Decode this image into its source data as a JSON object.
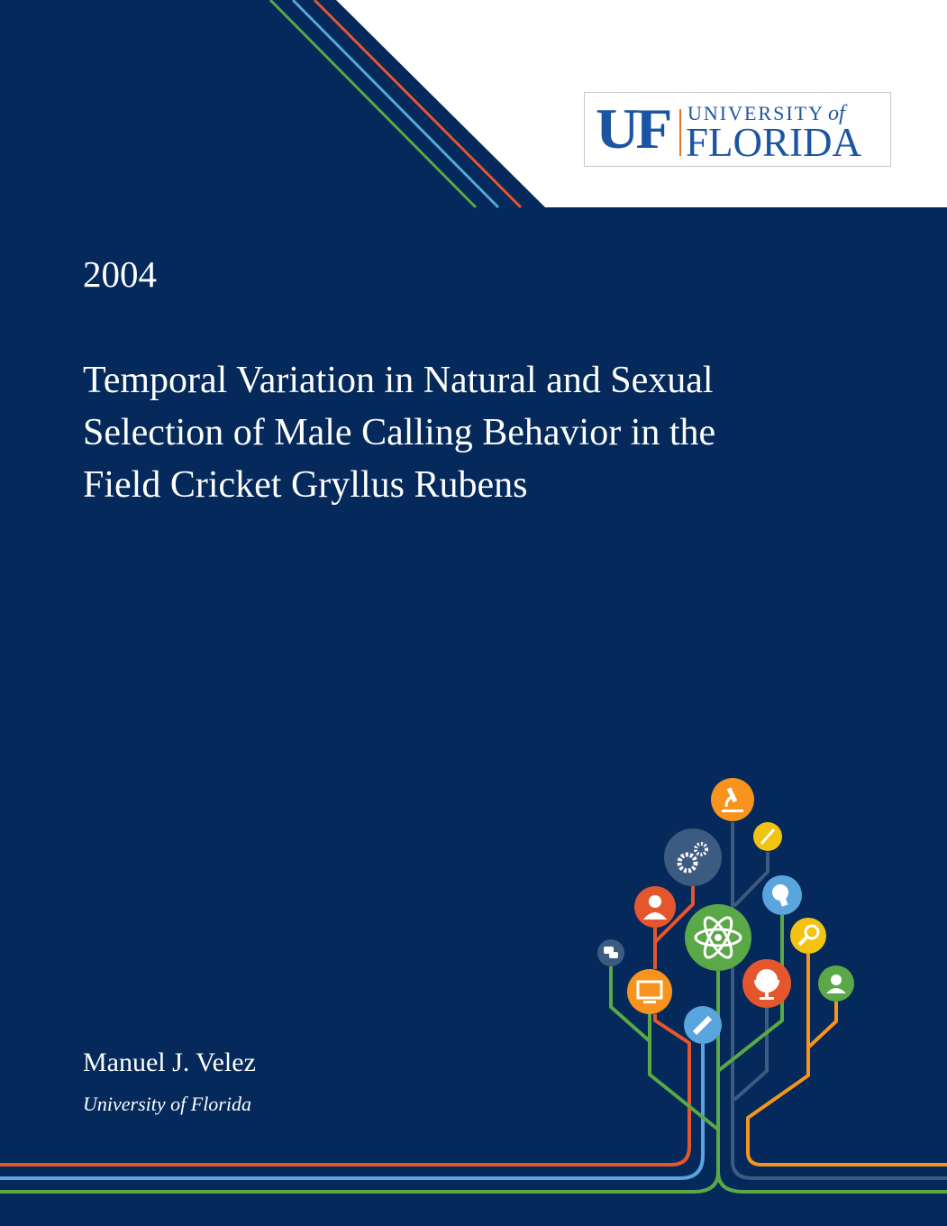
{
  "cover": {
    "publisher_logo": {
      "mark": "UF",
      "line1": "UNIVERSITY",
      "line1_of": "of",
      "line2": "FLORIDA"
    },
    "year": "2004",
    "title_lines": [
      "Temporal Variation in Natural and Sexual",
      "Selection of Male Calling Behavior in the",
      "Field Cricket Gryllus Rubens"
    ],
    "author": "Manuel J. Velez",
    "affiliation": "University of Florida"
  },
  "colors": {
    "background": "#04295a",
    "logo_blue": "#1b55a2",
    "orange": "#f7941d",
    "yellow": "#f2c313",
    "slate": "#3d5a80",
    "light_blue": "#5aa5dd",
    "red": "#e4572e",
    "green": "#5aa847"
  },
  "tree_icons": [
    "microscope-icon",
    "paintbrush-icon",
    "gears-icon",
    "lightbulb-icon",
    "person-icon",
    "atom-icon",
    "magnifier-icon",
    "chat-icon",
    "globe-icon",
    "student-icon",
    "monitor-icon",
    "pencil-icon"
  ]
}
